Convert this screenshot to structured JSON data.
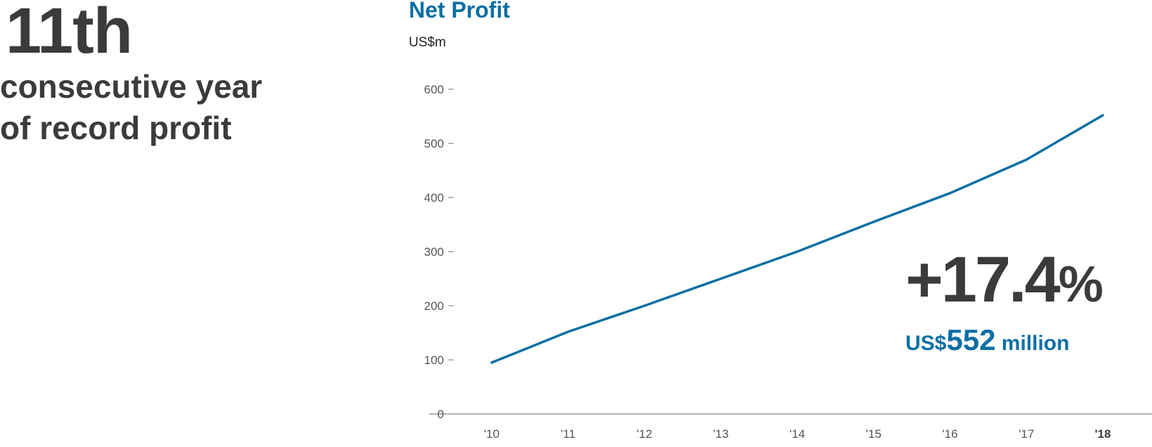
{
  "headline": {
    "big_number": "11th",
    "subtext_line1": "consecutive year",
    "subtext_line2": "of record profit"
  },
  "callout": {
    "percent": "+17.4",
    "percent_sign": "%",
    "amount_prefix": "US$",
    "amount_value": "552",
    "amount_suffix": " million"
  },
  "colors": {
    "accent": "#0b6fa4",
    "text_dark": "#3b3b3b",
    "axis": "#999999"
  },
  "chart_data": {
    "type": "line",
    "title": "Net Profit",
    "ylabel": "US$m",
    "xlabel": "",
    "categories": [
      "'10",
      "'11",
      "'12",
      "'13",
      "'14",
      "'15",
      "'16",
      "'17",
      "'18"
    ],
    "highlight_category": "'18",
    "series": [
      {
        "values": [
          95,
          152,
          200,
          250,
          300,
          355,
          408,
          470,
          552
        ]
      }
    ],
    "yticks": [
      0,
      100,
      200,
      300,
      400,
      500,
      600
    ],
    "ylim": [
      0,
      600
    ],
    "grid": false,
    "legend": "none"
  }
}
